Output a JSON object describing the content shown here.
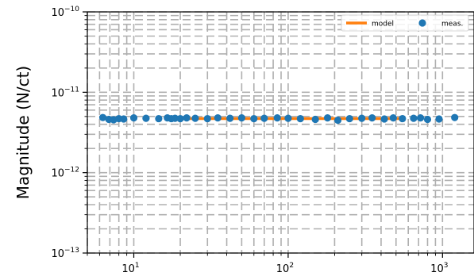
{
  "chart_data": {
    "type": "scatter",
    "title": "",
    "xlabel": "",
    "ylabel": "Magnitude (N/ct)",
    "xscale": "log",
    "yscale": "log",
    "xlim": [
      5,
      1600
    ],
    "ylim": [
      1e-13,
      1e-10
    ],
    "x_ticks": [
      10,
      100,
      1000
    ],
    "x_tick_labels": [
      {
        "base": "10",
        "exp": "1"
      },
      {
        "base": "10",
        "exp": "2"
      },
      {
        "base": "10",
        "exp": "3"
      }
    ],
    "y_ticks": [
      1e-13,
      1e-12,
      1e-11,
      1e-10
    ],
    "y_tick_labels": [
      {
        "base": "10",
        "exp": "−13"
      },
      {
        "base": "10",
        "exp": "−12"
      },
      {
        "base": "10",
        "exp": "−11"
      },
      {
        "base": "10",
        "exp": "−10"
      }
    ],
    "grid": true,
    "grid_style": "dashed",
    "legend_position": "top-right",
    "series": [
      {
        "name": "model",
        "type": "line",
        "color": "#ff7f0e",
        "x": [
          21,
          550
        ],
        "y": [
          4.7e-12,
          4.7e-12
        ]
      },
      {
        "name": "meas.",
        "type": "scatter",
        "color": "#1f77b4",
        "x": [
          6.3,
          6.9,
          7.4,
          8.0,
          8.6,
          10.0,
          12.0,
          14.5,
          16.5,
          17.5,
          18.5,
          20.0,
          22.0,
          25.0,
          30.0,
          35.0,
          42.0,
          50.0,
          60.0,
          70.0,
          85.0,
          100.0,
          120.0,
          150.0,
          180.0,
          210.0,
          250.0,
          300.0,
          350.0,
          420.0,
          480.0,
          550.0,
          650.0,
          720.0,
          800.0,
          950.0,
          1200.0
        ],
        "y": [
          4.85e-12,
          4.6e-12,
          4.55e-12,
          4.7e-12,
          4.65e-12,
          4.8e-12,
          4.75e-12,
          4.7e-12,
          4.8e-12,
          4.7e-12,
          4.75e-12,
          4.7e-12,
          4.8e-12,
          4.75e-12,
          4.7e-12,
          4.8e-12,
          4.75e-12,
          4.8e-12,
          4.7e-12,
          4.75e-12,
          4.8e-12,
          4.75e-12,
          4.7e-12,
          4.6e-12,
          4.8e-12,
          4.5e-12,
          4.7e-12,
          4.75e-12,
          4.8e-12,
          4.65e-12,
          4.8e-12,
          4.7e-12,
          4.75e-12,
          4.8e-12,
          4.6e-12,
          4.65e-12,
          4.85e-12
        ]
      }
    ]
  }
}
